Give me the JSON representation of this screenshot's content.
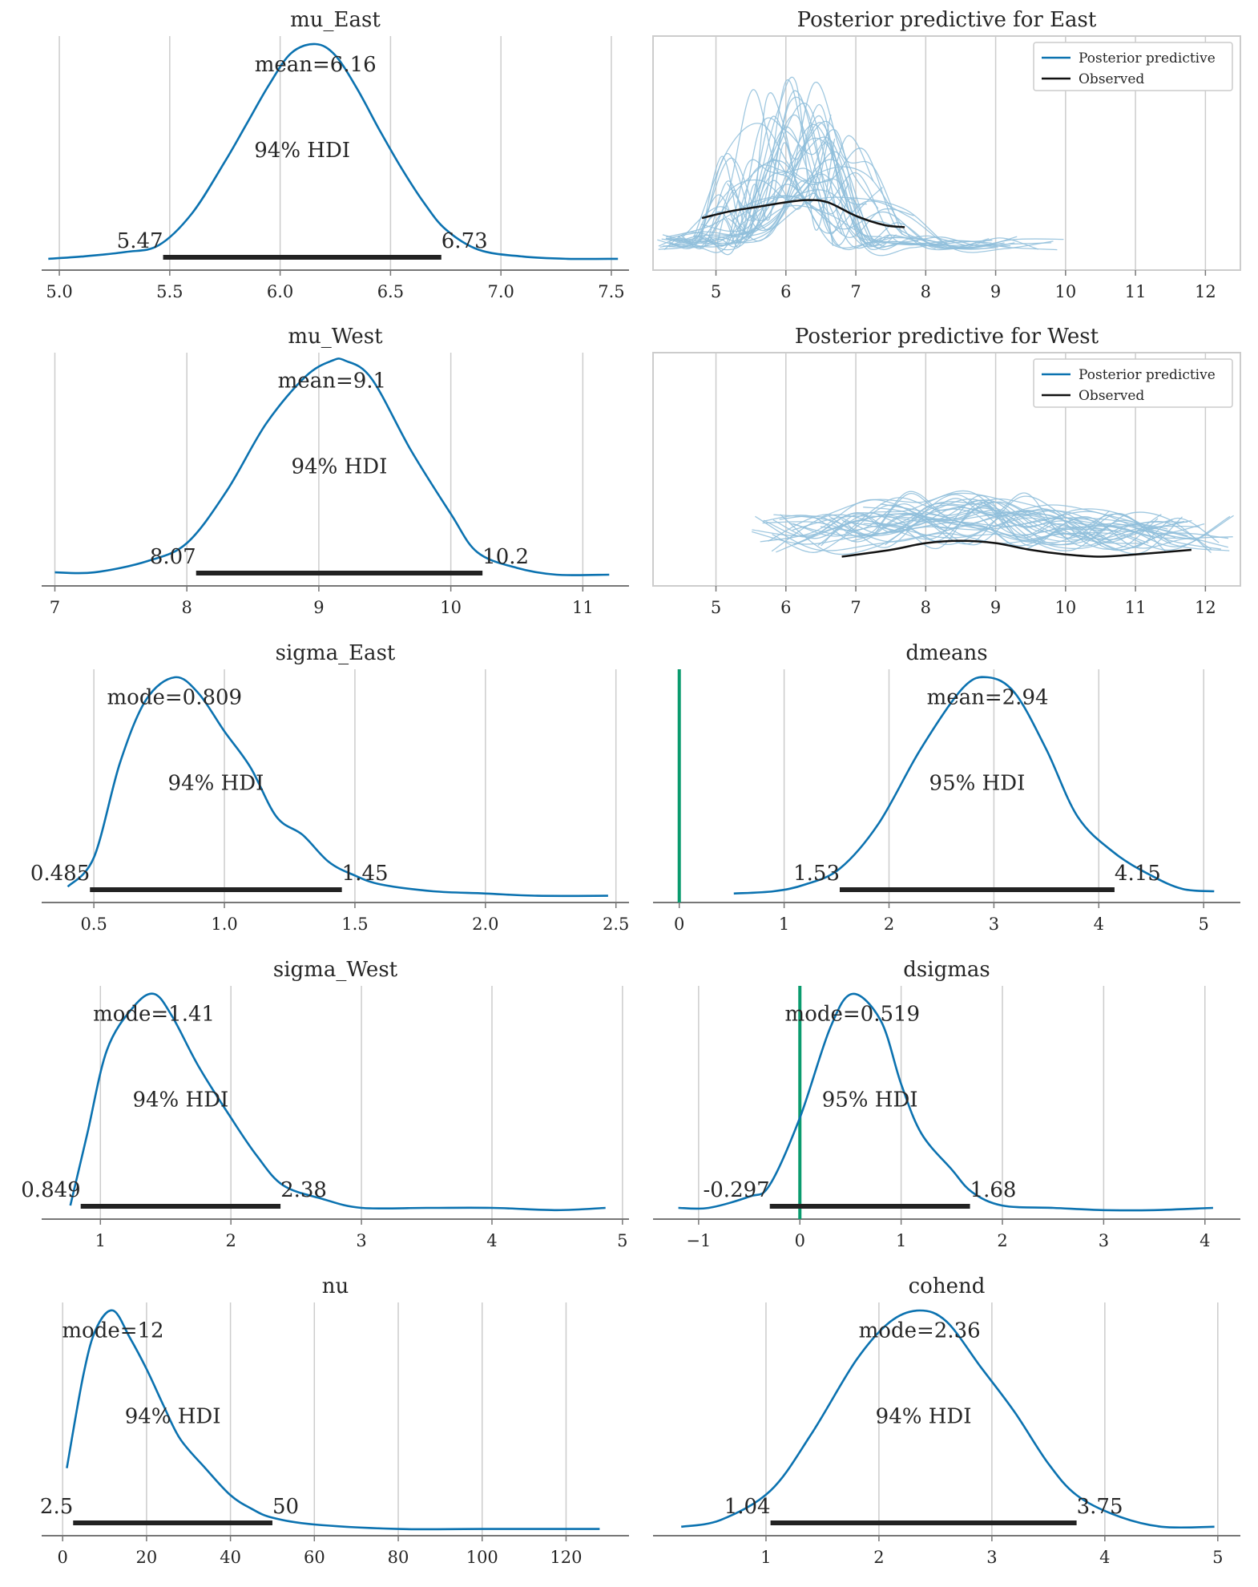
{
  "colors": {
    "kde": "#0b72b0",
    "hdi": "#222222",
    "ref": "#0a9b6e",
    "pp": "#8fbedb",
    "observed": "#111111",
    "grid": "#cccccc",
    "axis": "#777777"
  },
  "chart_data": [
    {
      "type": "line",
      "title": "mu_East",
      "xlim": [
        4.92,
        7.58
      ],
      "ylim": [
        0,
        1
      ],
      "xticks": [
        5.0,
        5.5,
        6.0,
        6.5,
        7.0,
        7.5
      ],
      "xtick_labels": [
        "5.0",
        "5.5",
        "6.0",
        "6.5",
        "7.0",
        "7.5"
      ],
      "x": [
        4.95,
        5.1,
        5.3,
        5.45,
        5.6,
        5.75,
        5.85,
        5.95,
        6.05,
        6.16,
        6.25,
        6.35,
        6.45,
        6.55,
        6.65,
        6.75,
        6.9,
        7.1,
        7.3,
        7.53
      ],
      "y": [
        0.05,
        0.06,
        0.08,
        0.11,
        0.25,
        0.48,
        0.65,
        0.82,
        0.96,
        1.0,
        0.95,
        0.8,
        0.62,
        0.45,
        0.3,
        0.18,
        0.09,
        0.06,
        0.05,
        0.05
      ],
      "point_estimate": {
        "label": "mean=6.16",
        "x": 6.16
      },
      "hdi": {
        "label": "94% HDI",
        "low": 5.47,
        "high": 6.73,
        "low_label": "5.47",
        "high_label": "6.73"
      }
    },
    {
      "type": "line",
      "title": "Posterior predictive for East",
      "xlim": [
        4.1,
        12.5
      ],
      "ylim": [
        0,
        1
      ],
      "xticks": [
        5,
        6,
        7,
        8,
        9,
        10,
        11,
        12
      ],
      "xtick_labels": [
        "5",
        "6",
        "7",
        "8",
        "9",
        "10",
        "11",
        "12"
      ],
      "legend": {
        "position": "top-right",
        "entries": [
          "Posterior predictive",
          "Observed"
        ]
      },
      "observed": {
        "x": [
          4.8,
          5.2,
          5.6,
          6.0,
          6.3,
          6.6,
          7.0,
          7.4,
          7.7
        ],
        "y": [
          0.23,
          0.26,
          0.28,
          0.3,
          0.31,
          0.3,
          0.24,
          0.2,
          0.19
        ]
      }
    },
    {
      "type": "line",
      "title": "mu_West",
      "xlim": [
        6.9,
        11.35
      ],
      "ylim": [
        0,
        1
      ],
      "xticks": [
        7,
        8,
        9,
        10,
        11
      ],
      "xtick_labels": [
        "7",
        "8",
        "9",
        "10",
        "11"
      ],
      "x": [
        7.0,
        7.3,
        7.7,
        8.0,
        8.3,
        8.6,
        8.9,
        9.1,
        9.2,
        9.4,
        9.7,
        10.0,
        10.2,
        10.5,
        10.8,
        11.2
      ],
      "y": [
        0.06,
        0.06,
        0.11,
        0.19,
        0.42,
        0.72,
        0.93,
        1.0,
        1.0,
        0.92,
        0.6,
        0.32,
        0.15,
        0.08,
        0.05,
        0.05
      ],
      "point_estimate": {
        "label": "mean=9.1",
        "x": 9.1
      },
      "hdi": {
        "label": "94% HDI",
        "low": 8.07,
        "high": 10.24,
        "low_label": "8.07",
        "high_label": "10.2"
      }
    },
    {
      "type": "line",
      "title": "Posterior predictive for West",
      "xlim": [
        4.1,
        12.5
      ],
      "ylim": [
        0,
        1
      ],
      "xticks": [
        5,
        6,
        7,
        8,
        9,
        10,
        11,
        12
      ],
      "xtick_labels": [
        "5",
        "6",
        "7",
        "8",
        "9",
        "10",
        "11",
        "12"
      ],
      "legend": {
        "position": "top-right",
        "entries": [
          "Posterior predictive",
          "Observed"
        ]
      },
      "observed": {
        "x": [
          6.8,
          7.5,
          8.0,
          8.5,
          9.0,
          9.5,
          10.0,
          10.5,
          11.0,
          11.8
        ],
        "y": [
          0.13,
          0.16,
          0.19,
          0.2,
          0.19,
          0.16,
          0.14,
          0.13,
          0.14,
          0.16
        ]
      }
    },
    {
      "type": "line",
      "title": "sigma_East",
      "xlim": [
        0.3,
        2.55
      ],
      "ylim": [
        0,
        1
      ],
      "xticks": [
        0.5,
        1.0,
        1.5,
        2.0,
        2.5
      ],
      "xtick_labels": [
        "0.5",
        "1.0",
        "1.5",
        "2.0",
        "2.5"
      ],
      "x": [
        0.4,
        0.5,
        0.6,
        0.7,
        0.81,
        0.9,
        1.0,
        1.1,
        1.2,
        1.3,
        1.4,
        1.5,
        1.6,
        1.8,
        2.0,
        2.2,
        2.47
      ],
      "y": [
        0.07,
        0.2,
        0.62,
        0.9,
        1.0,
        0.93,
        0.76,
        0.6,
        0.38,
        0.3,
        0.18,
        0.12,
        0.08,
        0.05,
        0.04,
        0.03,
        0.03
      ],
      "point_estimate": {
        "label": "mode=0.809",
        "x": 0.809
      },
      "hdi": {
        "label": "94% HDI",
        "low": 0.485,
        "high": 1.45,
        "low_label": "0.485",
        "high_label": "1.45"
      }
    },
    {
      "type": "line",
      "title": "dmeans",
      "xlim": [
        -0.25,
        5.35
      ],
      "ylim": [
        0,
        1
      ],
      "xticks": [
        0,
        1,
        2,
        3,
        4,
        5
      ],
      "xtick_labels": [
        "0",
        "1",
        "2",
        "3",
        "4",
        "5"
      ],
      "x": [
        0.52,
        0.9,
        1.2,
        1.53,
        1.9,
        2.3,
        2.7,
        2.94,
        3.2,
        3.5,
        3.8,
        4.15,
        4.5,
        4.8,
        5.1
      ],
      "y": [
        0.04,
        0.05,
        0.08,
        0.15,
        0.35,
        0.68,
        0.95,
        1.0,
        0.93,
        0.68,
        0.38,
        0.22,
        0.12,
        0.06,
        0.05
      ],
      "reference": 0,
      "point_estimate": {
        "label": "mean=2.94",
        "x": 2.94
      },
      "hdi": {
        "label": "95% HDI",
        "low": 1.53,
        "high": 4.15,
        "low_label": "1.53",
        "high_label": "4.15"
      }
    },
    {
      "type": "line",
      "title": "sigma_West",
      "xlim": [
        0.55,
        5.05
      ],
      "ylim": [
        0,
        1
      ],
      "xticks": [
        1,
        2,
        3,
        4,
        5
      ],
      "xtick_labels": [
        "1",
        "2",
        "3",
        "4",
        "5"
      ],
      "x": [
        0.77,
        0.9,
        1.05,
        1.25,
        1.41,
        1.55,
        1.75,
        2.0,
        2.2,
        2.4,
        2.7,
        3.0,
        3.5,
        4.0,
        4.5,
        4.87
      ],
      "y": [
        0.06,
        0.38,
        0.75,
        0.94,
        1.0,
        0.9,
        0.68,
        0.45,
        0.28,
        0.15,
        0.09,
        0.05,
        0.05,
        0.05,
        0.04,
        0.05
      ],
      "point_estimate": {
        "label": "mode=1.41",
        "x": 1.41
      },
      "hdi": {
        "label": "94% HDI",
        "low": 0.849,
        "high": 2.38,
        "low_label": "0.849",
        "high_label": "2.38"
      }
    },
    {
      "type": "line",
      "title": "dsigmas",
      "xlim": [
        -1.45,
        4.35
      ],
      "ylim": [
        0,
        1
      ],
      "xticks": [
        -1,
        0,
        1,
        2,
        3,
        4
      ],
      "xtick_labels": [
        "−1",
        "0",
        "1",
        "2",
        "3",
        "4"
      ],
      "x": [
        -1.2,
        -0.9,
        -0.5,
        -0.3,
        0.0,
        0.3,
        0.52,
        0.8,
        1.0,
        1.2,
        1.5,
        1.7,
        2.0,
        2.5,
        3.0,
        3.5,
        4.08
      ],
      "y": [
        0.05,
        0.05,
        0.1,
        0.15,
        0.45,
        0.85,
        1.0,
        0.88,
        0.6,
        0.38,
        0.22,
        0.12,
        0.06,
        0.05,
        0.04,
        0.04,
        0.05
      ],
      "reference": 0,
      "point_estimate": {
        "label": "mode=0.519",
        "x": 0.519
      },
      "hdi": {
        "label": "95% HDI",
        "low": -0.297,
        "high": 1.68,
        "low_label": "-0.297",
        "high_label": "1.68"
      }
    },
    {
      "type": "line",
      "title": "nu",
      "xlim": [
        -5,
        135
      ],
      "ylim": [
        0,
        1
      ],
      "xticks": [
        0,
        20,
        40,
        60,
        80,
        100,
        120
      ],
      "xtick_labels": [
        "0",
        "20",
        "40",
        "60",
        "80",
        "100",
        "120"
      ],
      "x": [
        1,
        5,
        8,
        12,
        16,
        20,
        24,
        28,
        34,
        40,
        45,
        50,
        60,
        80,
        100,
        128
      ],
      "y": [
        0.3,
        0.72,
        0.92,
        1.0,
        0.88,
        0.74,
        0.58,
        0.43,
        0.3,
        0.18,
        0.12,
        0.08,
        0.05,
        0.03,
        0.03,
        0.03
      ],
      "point_estimate": {
        "label": "mode=12",
        "x": 12
      },
      "hdi": {
        "label": "94% HDI",
        "low": 2.5,
        "high": 50,
        "low_label": "2.5",
        "high_label": "50"
      }
    },
    {
      "type": "line",
      "title": "cohend",
      "xlim": [
        0.0,
        5.2
      ],
      "ylim": [
        0,
        1
      ],
      "xticks": [
        1,
        2,
        3,
        4,
        5
      ],
      "xtick_labels": [
        "1",
        "2",
        "3",
        "4",
        "5"
      ],
      "x": [
        0.25,
        0.6,
        1.04,
        1.4,
        1.8,
        2.1,
        2.36,
        2.6,
        2.9,
        3.2,
        3.5,
        3.75,
        4.1,
        4.5,
        4.97
      ],
      "y": [
        0.04,
        0.07,
        0.2,
        0.45,
        0.78,
        0.95,
        1.0,
        0.95,
        0.75,
        0.55,
        0.32,
        0.18,
        0.09,
        0.04,
        0.04
      ],
      "point_estimate": {
        "label": "mode=2.36",
        "x": 2.36
      },
      "hdi": {
        "label": "94% HDI",
        "low": 1.04,
        "high": 3.75,
        "low_label": "1.04",
        "high_label": "3.75"
      }
    }
  ]
}
